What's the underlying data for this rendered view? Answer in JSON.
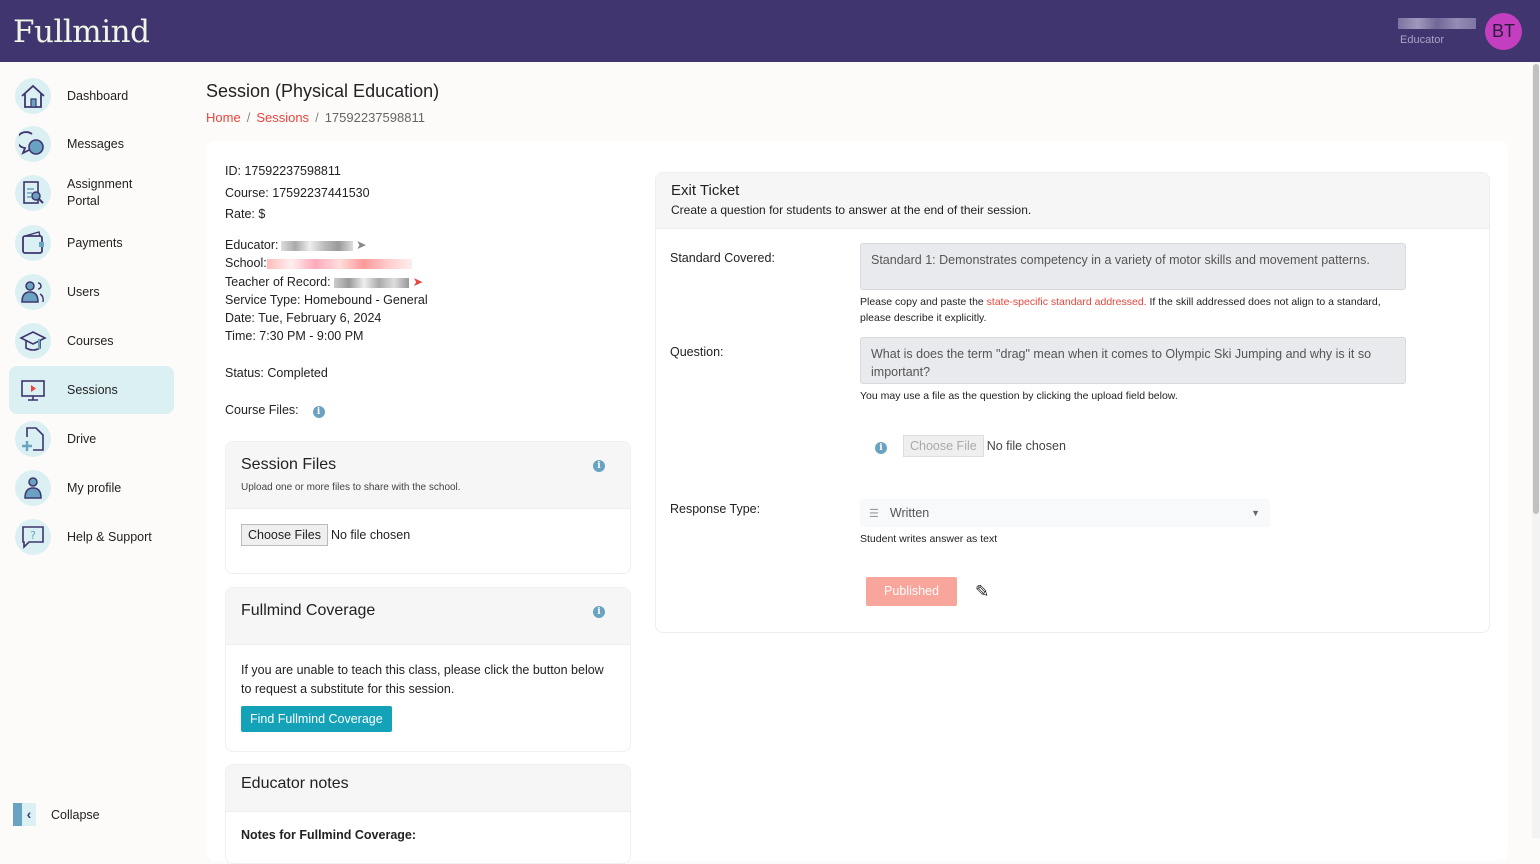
{
  "header": {
    "logo": "Fullmind",
    "user_role": "Educator",
    "avatar_initials": "BT",
    "colors": {
      "header_bg": "#40356e",
      "avatar": "#c43fc0",
      "accent_red": "#e8453c",
      "teal": "#14a2b8"
    }
  },
  "sidebar": {
    "items": [
      {
        "label": "Dashboard",
        "icon": "home-icon"
      },
      {
        "label": "Messages",
        "icon": "chat-icon"
      },
      {
        "label": "Assignment Portal",
        "icon": "document-search-icon"
      },
      {
        "label": "Payments",
        "icon": "wallet-icon"
      },
      {
        "label": "Users",
        "icon": "users-icon"
      },
      {
        "label": "Courses",
        "icon": "graduation-cap-icon"
      },
      {
        "label": "Sessions",
        "icon": "monitor-play-icon",
        "active": true
      },
      {
        "label": "Drive",
        "icon": "file-plus-icon"
      },
      {
        "label": "My profile",
        "icon": "user-icon"
      },
      {
        "label": "Help & Support",
        "icon": "help-icon"
      }
    ],
    "collapse_label": "Collapse"
  },
  "page": {
    "title": "Session (Physical Education)",
    "breadcrumb": [
      "Home",
      "Sessions",
      "17592237598811"
    ]
  },
  "details": {
    "id": "ID: 17592237598811",
    "course": "Course: 17592237441530",
    "rate": "Rate: $",
    "educator": "Educator:",
    "school": "School:",
    "teacher": "Teacher of Record:",
    "service_type": "Service Type: Homebound - General",
    "date": "Date: Tue, February 6, 2024",
    "time": "Time: 7:30 PM - 9:00 PM",
    "status": "Status: Completed",
    "course_files": "Course Files:"
  },
  "session_files": {
    "title": "Session Files",
    "subtitle": "Upload one or more files to share with the school.",
    "button": "Choose Files",
    "status": "No file chosen"
  },
  "coverage": {
    "title": "Fullmind Coverage",
    "text": "If you are unable to teach this class, please click the button below to request a substitute for this session.",
    "button": "Find Fullmind Coverage"
  },
  "notes": {
    "title": "Educator notes",
    "subtitle": "Notes for Fullmind Coverage:"
  },
  "exit_ticket": {
    "title": "Exit Ticket",
    "subtitle": "Create a question for students to answer at the end of their session.",
    "standard_label": "Standard Covered:",
    "standard_value": "Standard 1: Demonstrates competency in a variety of motor skills and movement patterns.",
    "standard_help_pre": "Please copy and paste the ",
    "standard_help_link": "state-specific standard addressed.",
    "standard_help_post": " If the skill addressed does not align to a standard, please describe it explicitly.",
    "question_label": "Question:",
    "question_value": "What is does the term \"drag\" mean when it comes to Olympic Ski Jumping and why is it so important?",
    "question_help": "You may use a file as the question by clicking the upload field below.",
    "file_button": "Choose File",
    "file_status": "No file chosen",
    "response_label": "Response Type:",
    "response_value": "Written",
    "response_help": "Student writes answer as text",
    "publish_button": "Published"
  }
}
